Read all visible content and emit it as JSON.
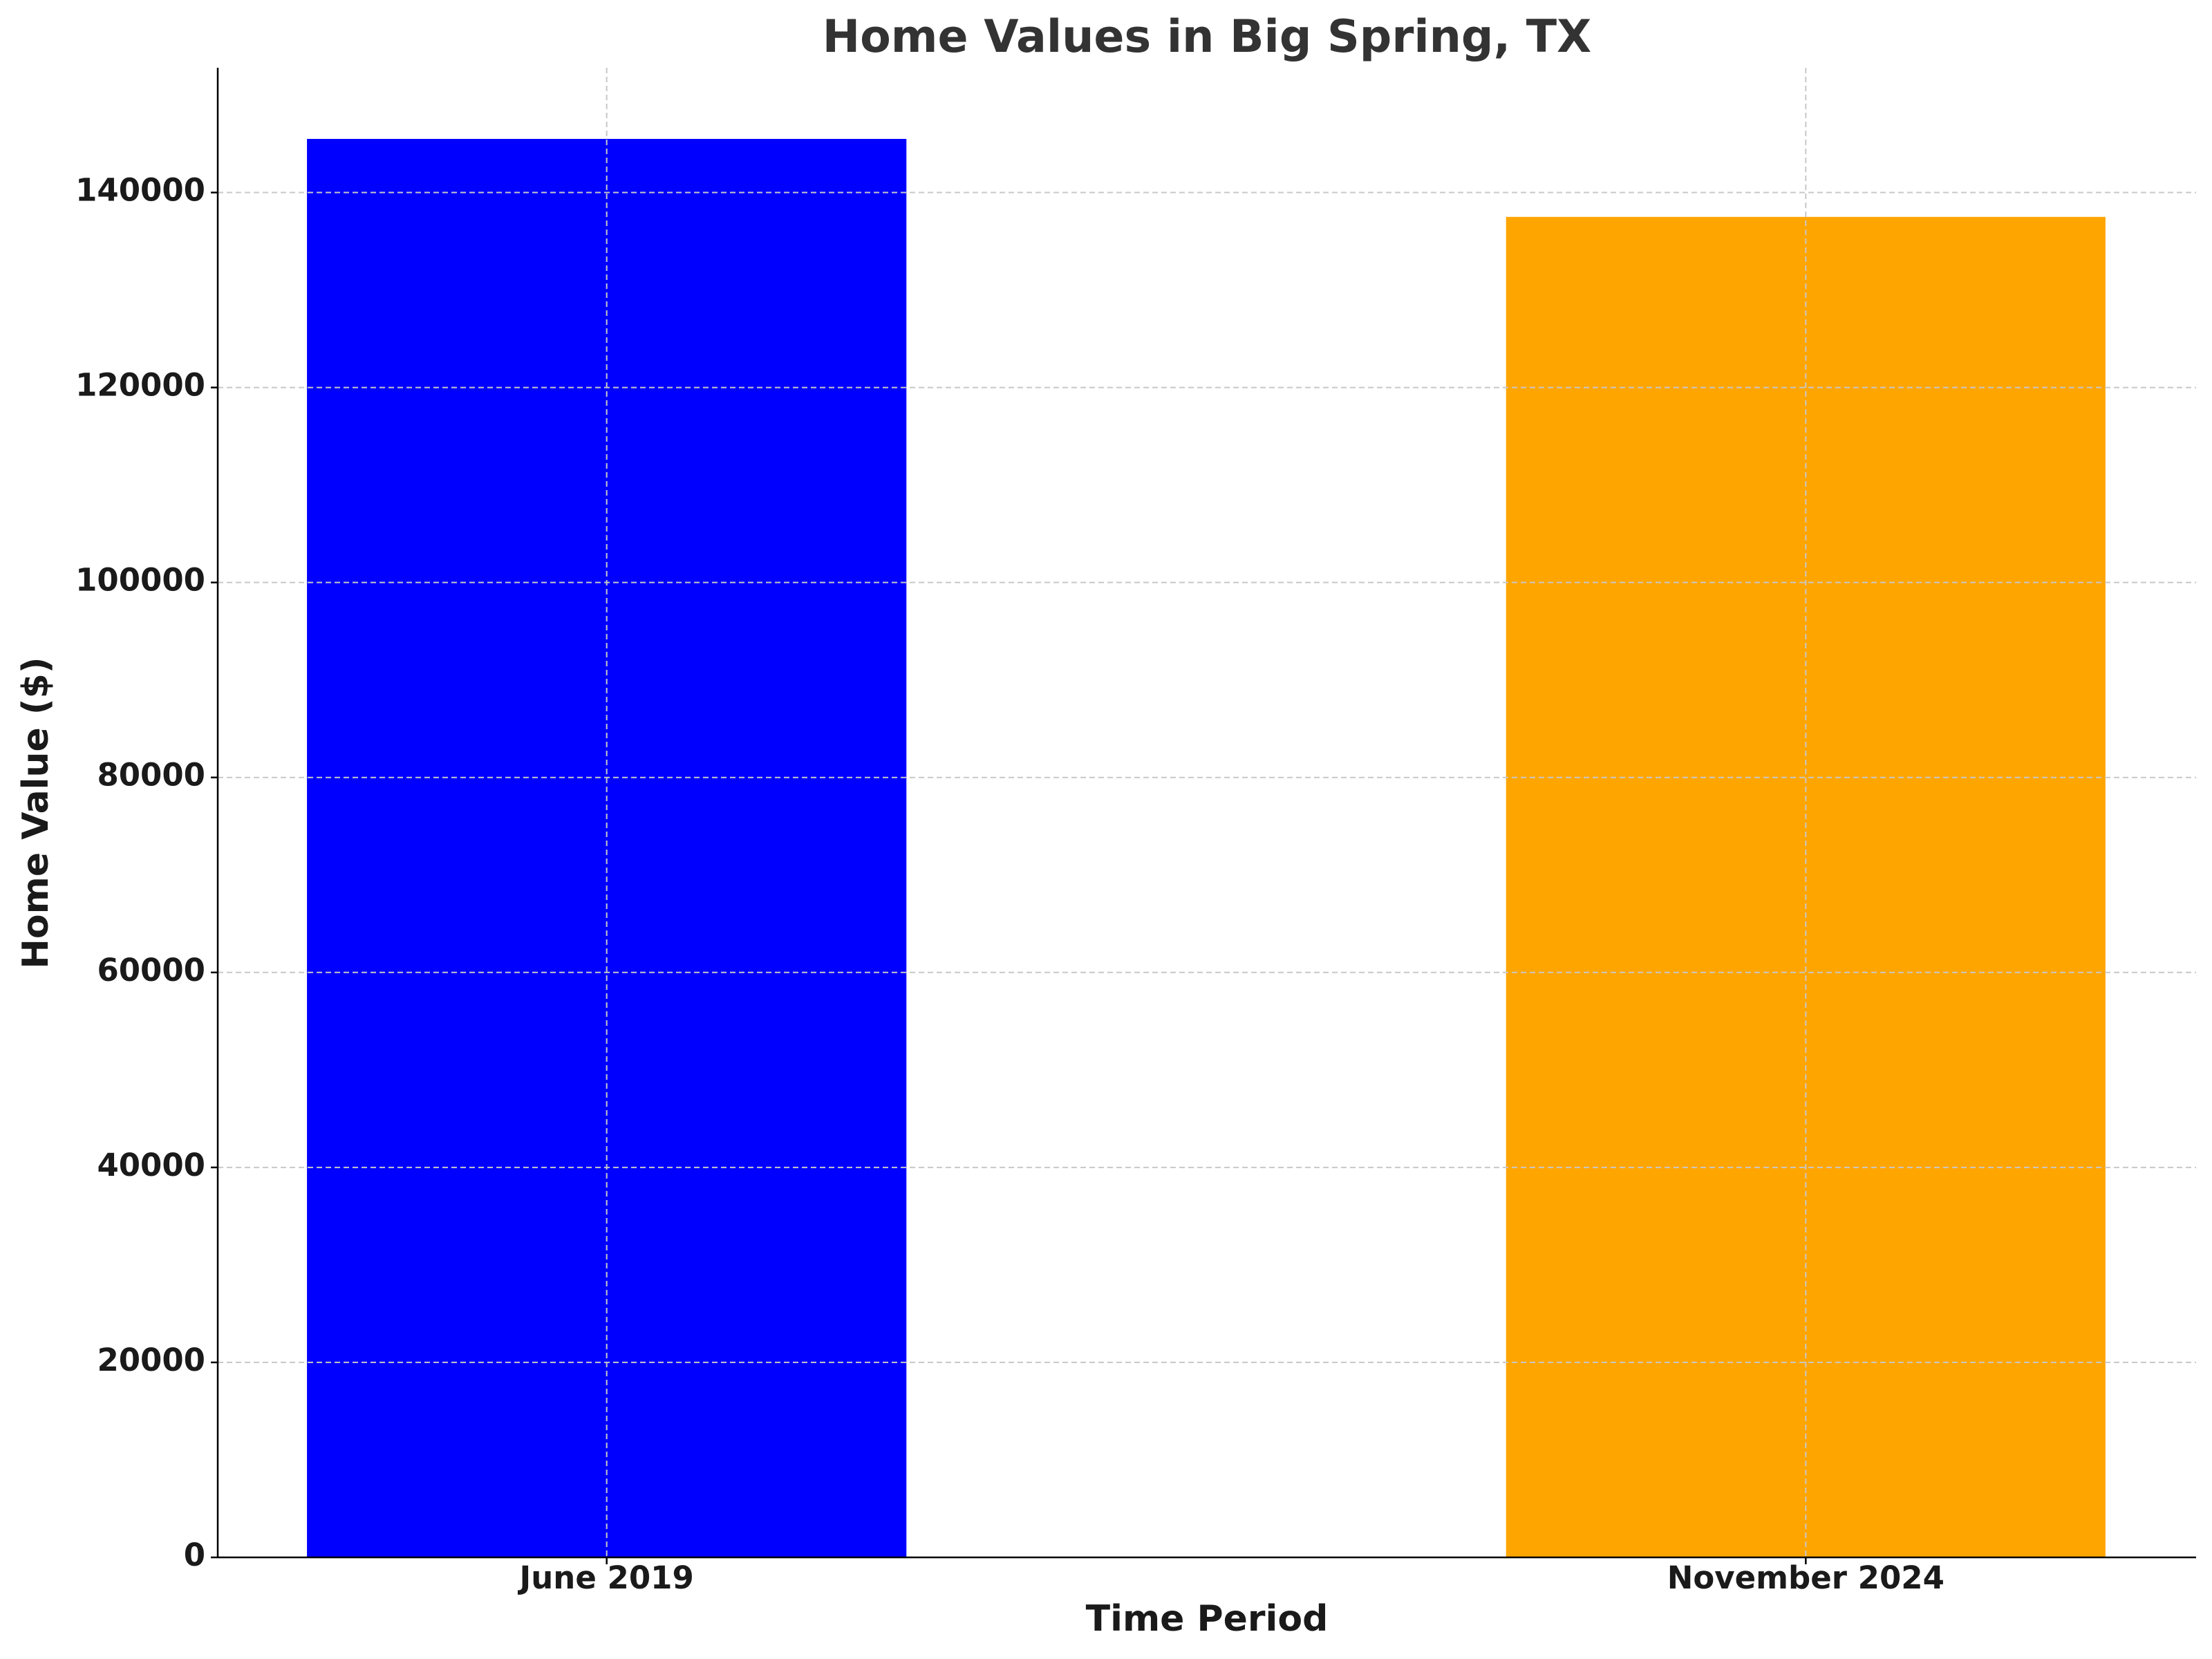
{
  "chart_data": {
    "type": "bar",
    "title": "Home Values in Big Spring, TX",
    "x_label": "Time Period",
    "y_label": "Home Value ($)",
    "categories": [
      "June 2019",
      "November 2024"
    ],
    "values": [
      145500,
      137500
    ],
    "colors": [
      "blue",
      "orange"
    ],
    "ylim": [
      0,
      152800
    ],
    "yticks": [
      0,
      20000,
      40000,
      60000,
      80000,
      100000,
      120000,
      140000
    ],
    "grid": true
  }
}
